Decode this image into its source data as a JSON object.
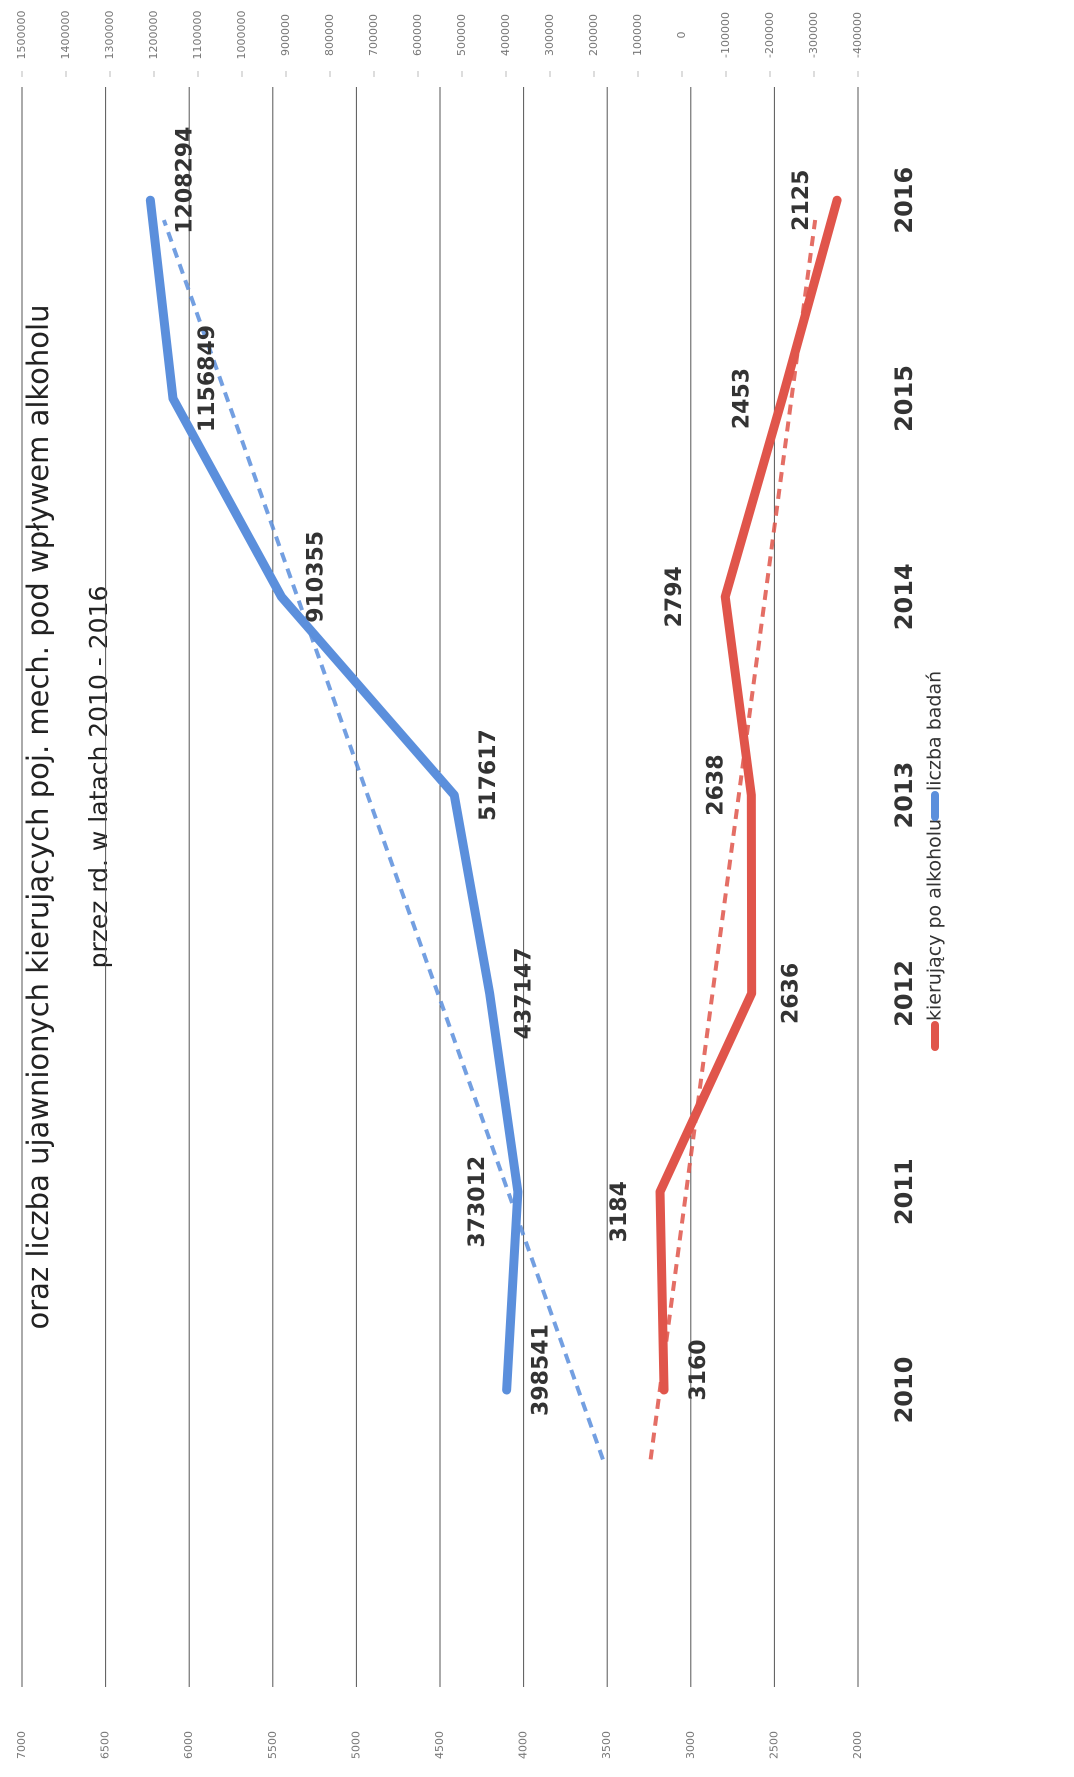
{
  "chart_data": {
    "type": "line",
    "title": "oraz liczba ujawnionych kierujących poj. mech. pod wpływem alkoholu",
    "subtitle": "przez rd. w latach 2010 - 2016",
    "categories": [
      "2010",
      "2011",
      "2012",
      "2013",
      "2014",
      "2015",
      "2016"
    ],
    "series": [
      {
        "name": "kierujący po alkoholu",
        "color": "#e0554b",
        "values": [
          3160,
          3184,
          2636,
          2638,
          2794,
          2453,
          2125
        ],
        "trendline": true
      },
      {
        "name": "liczba badań",
        "color": "#5b8fdc",
        "axis": "y2",
        "values": [
          398541,
          373012,
          437147,
          517617,
          910355,
          1156849,
          1208294
        ],
        "trendline": true
      }
    ],
    "ylim": [
      2000,
      7000
    ],
    "yticks": [
      2000,
      2500,
      3000,
      3500,
      4000,
      4500,
      5000,
      5500,
      6000,
      6500,
      7000
    ],
    "y2lim": [
      -400000,
      1500000
    ],
    "y2ticks": [
      -400000,
      -300000,
      -200000,
      -100000,
      0,
      100000,
      200000,
      300000,
      400000,
      500000,
      600000,
      700000,
      800000,
      900000,
      1000000,
      1100000,
      1200000,
      1300000,
      1400000,
      1500000
    ],
    "grid": true,
    "legend": "bottom"
  }
}
